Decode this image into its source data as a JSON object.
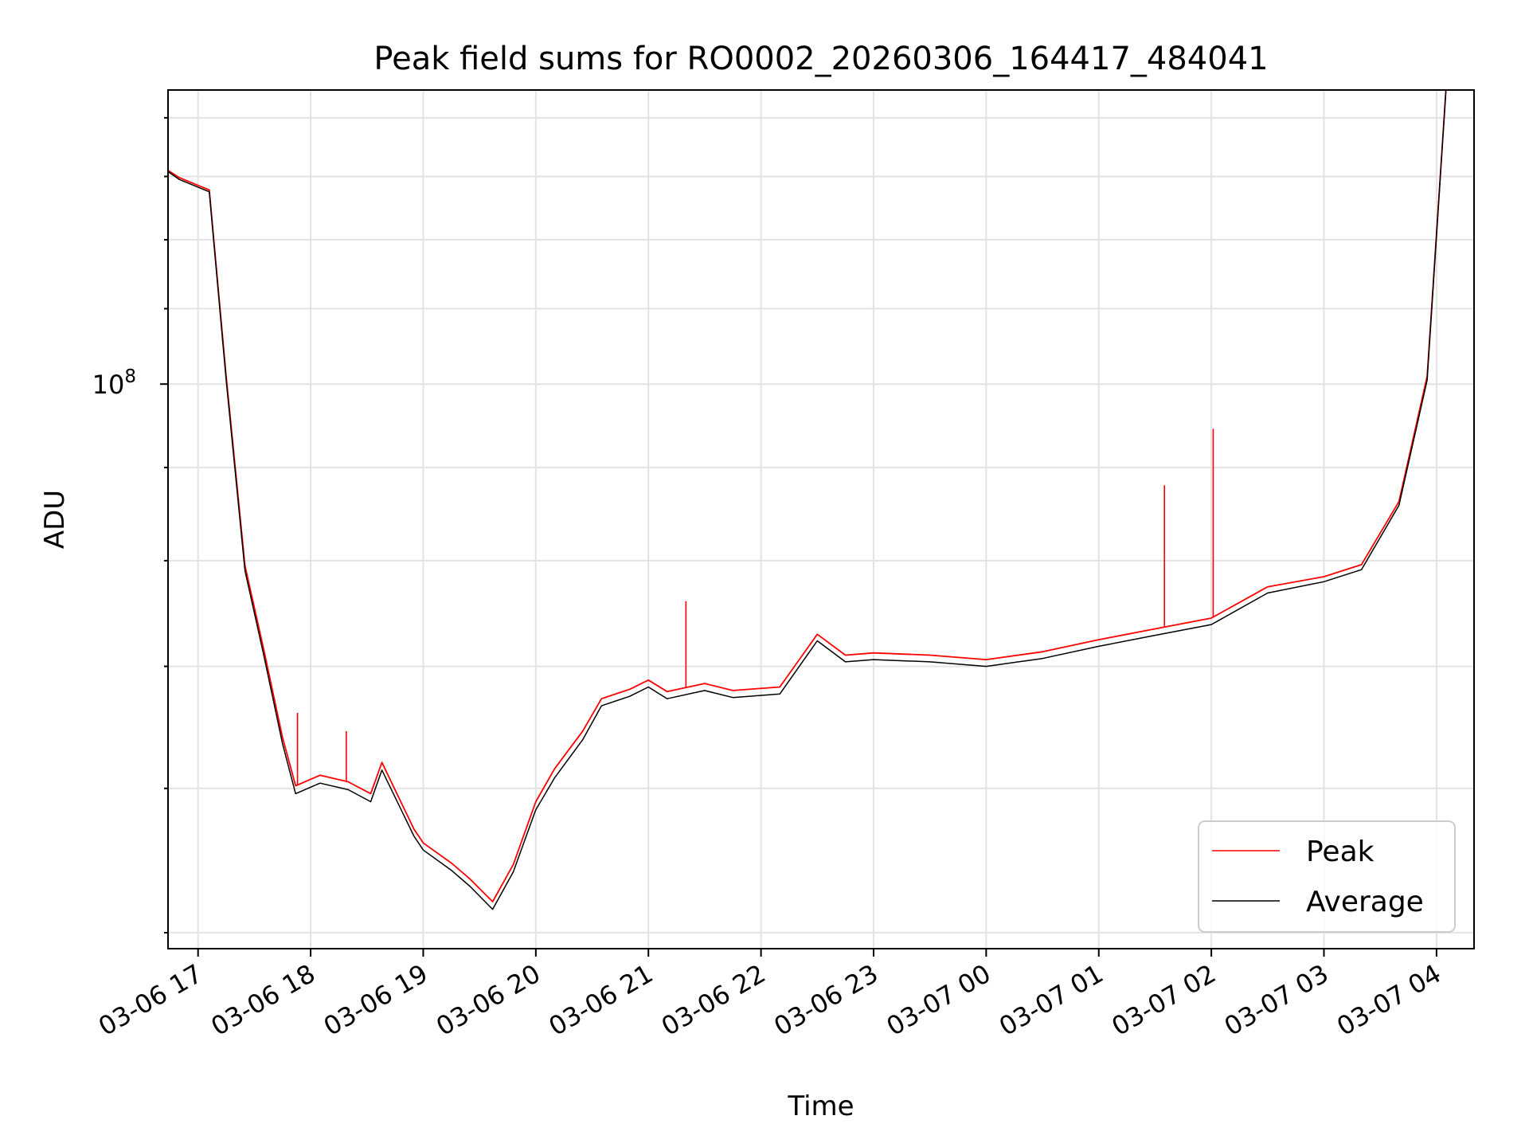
{
  "chart_data": {
    "type": "line",
    "title": "Peak field sums for RO0002_20260306_164417_484041",
    "xlabel": "Time",
    "ylabel": "ADU",
    "x_tick_labels": [
      "03-06 17",
      "03-06 18",
      "03-06 19",
      "03-06 20",
      "03-06 21",
      "03-06 22",
      "03-06 23",
      "03-07 00",
      "03-07 01",
      "03-07 02",
      "03-07 03",
      "03-07 04"
    ],
    "y_scale": "log",
    "y_tick_labels": [
      {
        "value": 100000000,
        "base": "10",
        "exponent": "8"
      }
    ],
    "xlim": [
      "2026-03-06 16:44",
      "2026-03-07 04:20"
    ],
    "ylim": [
      49000000,
      145000000
    ],
    "grid": true,
    "legend_position": "lower-right",
    "series": [
      {
        "name": "Peak",
        "color": "#ff0000",
        "x": [
          "2026-03-06 16:44",
          "2026-03-06 16:50",
          "2026-03-06 17:06",
          "2026-03-06 17:15",
          "2026-03-06 17:25",
          "2026-03-06 17:35",
          "2026-03-06 17:45",
          "2026-03-06 17:52",
          "2026-03-06 18:05",
          "2026-03-06 18:20",
          "2026-03-06 18:32",
          "2026-03-06 18:38",
          "2026-03-06 18:55",
          "2026-03-06 19:00",
          "2026-03-06 19:15",
          "2026-03-06 19:25",
          "2026-03-06 19:37",
          "2026-03-06 19:48",
          "2026-03-06 20:00",
          "2026-03-06 20:10",
          "2026-03-06 20:25",
          "2026-03-06 20:35",
          "2026-03-06 20:50",
          "2026-03-06 21:00",
          "2026-03-06 21:10",
          "2026-03-06 21:30",
          "2026-03-06 21:45",
          "2026-03-06 22:10",
          "2026-03-06 22:30",
          "2026-03-06 22:45",
          "2026-03-06 23:00",
          "2026-03-06 23:30",
          "2026-03-07 00:00",
          "2026-03-07 00:30",
          "2026-03-07 01:00",
          "2026-03-07 01:30",
          "2026-03-07 02:00",
          "2026-03-07 02:30",
          "2026-03-07 03:00",
          "2026-03-07 03:20",
          "2026-03-07 03:40",
          "2026-03-07 03:55",
          "2026-03-07 04:05"
        ],
        "y": [
          131000000,
          129800000,
          127800000,
          101000000,
          79500000,
          71500000,
          64000000,
          60200000,
          61000000,
          60500000,
          59600000,
          62000000,
          57000000,
          56000000,
          54600000,
          53500000,
          52000000,
          54500000,
          59000000,
          61500000,
          64500000,
          67200000,
          68000000,
          68800000,
          67800000,
          68500000,
          67900000,
          68200000,
          72900000,
          71000000,
          71200000,
          71000000,
          70600000,
          71300000,
          72400000,
          73400000,
          74400000,
          77400000,
          78400000,
          79600000,
          86200000,
          101000000,
          145000000
        ]
      },
      {
        "name": "Average",
        "color": "#000000",
        "x": [
          "2026-03-06 16:44",
          "2026-03-06 16:50",
          "2026-03-06 17:06",
          "2026-03-06 17:15",
          "2026-03-06 17:25",
          "2026-03-06 17:35",
          "2026-03-06 17:45",
          "2026-03-06 17:52",
          "2026-03-06 18:05",
          "2026-03-06 18:20",
          "2026-03-06 18:32",
          "2026-03-06 18:38",
          "2026-03-06 18:55",
          "2026-03-06 19:00",
          "2026-03-06 19:15",
          "2026-03-06 19:25",
          "2026-03-06 19:37",
          "2026-03-06 19:48",
          "2026-03-06 20:00",
          "2026-03-06 20:10",
          "2026-03-06 20:25",
          "2026-03-06 20:35",
          "2026-03-06 20:50",
          "2026-03-06 21:00",
          "2026-03-06 21:10",
          "2026-03-06 21:30",
          "2026-03-06 21:45",
          "2026-03-06 22:10",
          "2026-03-06 22:30",
          "2026-03-06 22:45",
          "2026-03-06 23:00",
          "2026-03-06 23:30",
          "2026-03-07 00:00",
          "2026-03-07 00:30",
          "2026-03-07 01:00",
          "2026-03-07 01:30",
          "2026-03-07 02:00",
          "2026-03-07 02:30",
          "2026-03-07 03:00",
          "2026-03-07 03:20",
          "2026-03-07 03:40",
          "2026-03-07 03:55",
          "2026-03-07 04:05"
        ],
        "y": [
          130800000,
          129500000,
          127500000,
          100500000,
          79000000,
          71000000,
          63500000,
          59600000,
          60400000,
          59900000,
          59000000,
          61400000,
          56500000,
          55500000,
          54100000,
          53000000,
          51500000,
          54000000,
          58400000,
          60800000,
          63800000,
          66600000,
          67400000,
          68200000,
          67200000,
          67900000,
          67300000,
          67600000,
          72300000,
          70400000,
          70600000,
          70400000,
          70000000,
          70700000,
          71800000,
          72800000,
          73800000,
          76800000,
          77900000,
          79100000,
          85800000,
          100500000,
          145000000
        ]
      }
    ],
    "spikes": [
      {
        "series": "Peak",
        "x": "2026-03-06 17:53",
        "y": 66000000
      },
      {
        "series": "Peak",
        "x": "2026-03-06 18:19",
        "y": 64500000
      },
      {
        "series": "Peak",
        "x": "2026-03-06 21:20",
        "y": 76000000
      },
      {
        "series": "Peak",
        "x": "2026-03-07 01:35",
        "y": 88000000
      },
      {
        "series": "Peak",
        "x": "2026-03-07 02:01",
        "y": 94500000
      }
    ]
  }
}
